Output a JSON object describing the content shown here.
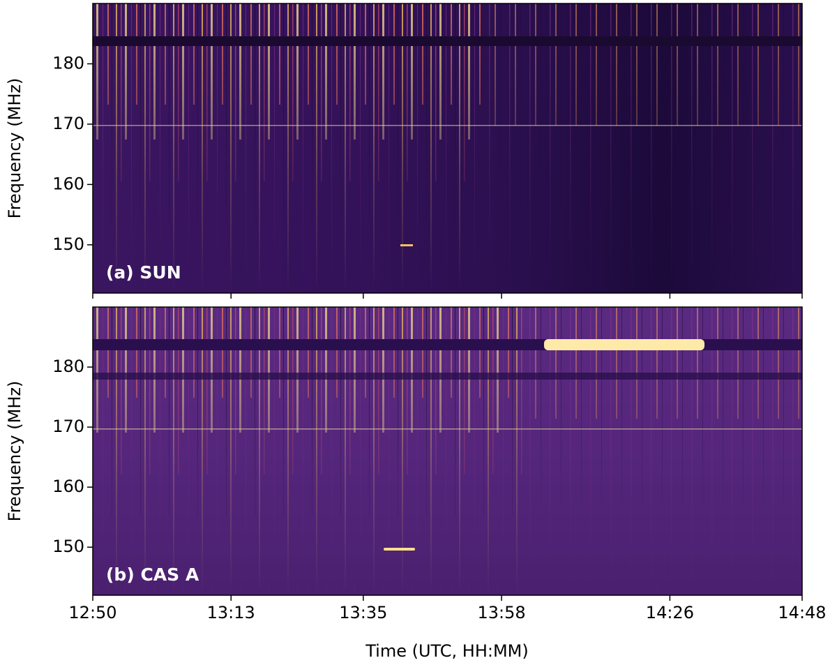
{
  "chart_data": [
    {
      "type": "spectrogram",
      "annotation": "(a) SUN",
      "ylabel": "Frequency (MHz)",
      "xlim": [
        "12:50",
        "14:48"
      ],
      "xticks": [
        "12:50",
        "13:13",
        "13:35",
        "13:58",
        "14:26",
        "14:48"
      ],
      "ylim": [
        142,
        190
      ],
      "yticks": [
        150,
        160,
        170,
        180
      ]
    },
    {
      "type": "spectrogram",
      "annotation": "(b) CAS A",
      "ylabel": "Frequency (MHz)",
      "xlabel": "Time (UTC, HH:MM)",
      "xlim": [
        "12:50",
        "14:48"
      ],
      "xticks": [
        "12:50",
        "13:13",
        "13:35",
        "13:58",
        "14:26",
        "14:48"
      ],
      "ylim": [
        142,
        190
      ],
      "yticks": [
        150,
        160,
        170,
        180
      ]
    }
  ]
}
